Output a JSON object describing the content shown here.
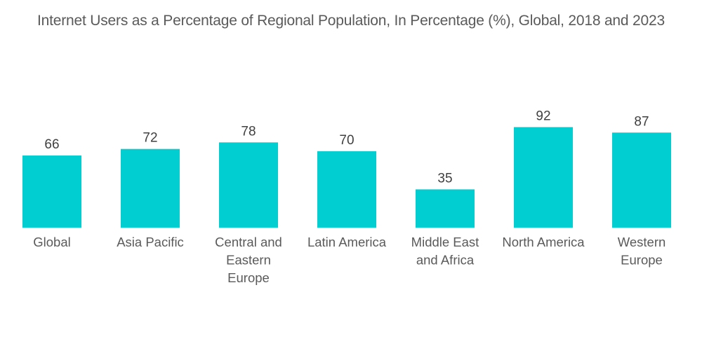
{
  "chart_data": {
    "type": "bar",
    "title": "Internet Users as a Percentage of Regional Population, In Percentage (%), Global, 2018 and 2023",
    "categories": [
      "Global",
      "Asia Pacific",
      "Central and Eastern Europe",
      "Latin America",
      "Middle East and Africa",
      "North America",
      "Western Europe"
    ],
    "category_label_lines": [
      [
        "Global"
      ],
      [
        "Asia Pacific"
      ],
      [
        "Central and",
        "Eastern",
        "Europe"
      ],
      [
        "Latin America"
      ],
      [
        "Middle East",
        "and Africa"
      ],
      [
        "North America"
      ],
      [
        "Western",
        "Europe"
      ]
    ],
    "values": [
      66,
      72,
      78,
      70,
      35,
      92,
      87
    ],
    "xlabel": "",
    "ylabel": "",
    "ylim": [
      0,
      100
    ],
    "grid": false,
    "legend": "none",
    "data_labels": true,
    "bar_color": "#00CED1"
  }
}
